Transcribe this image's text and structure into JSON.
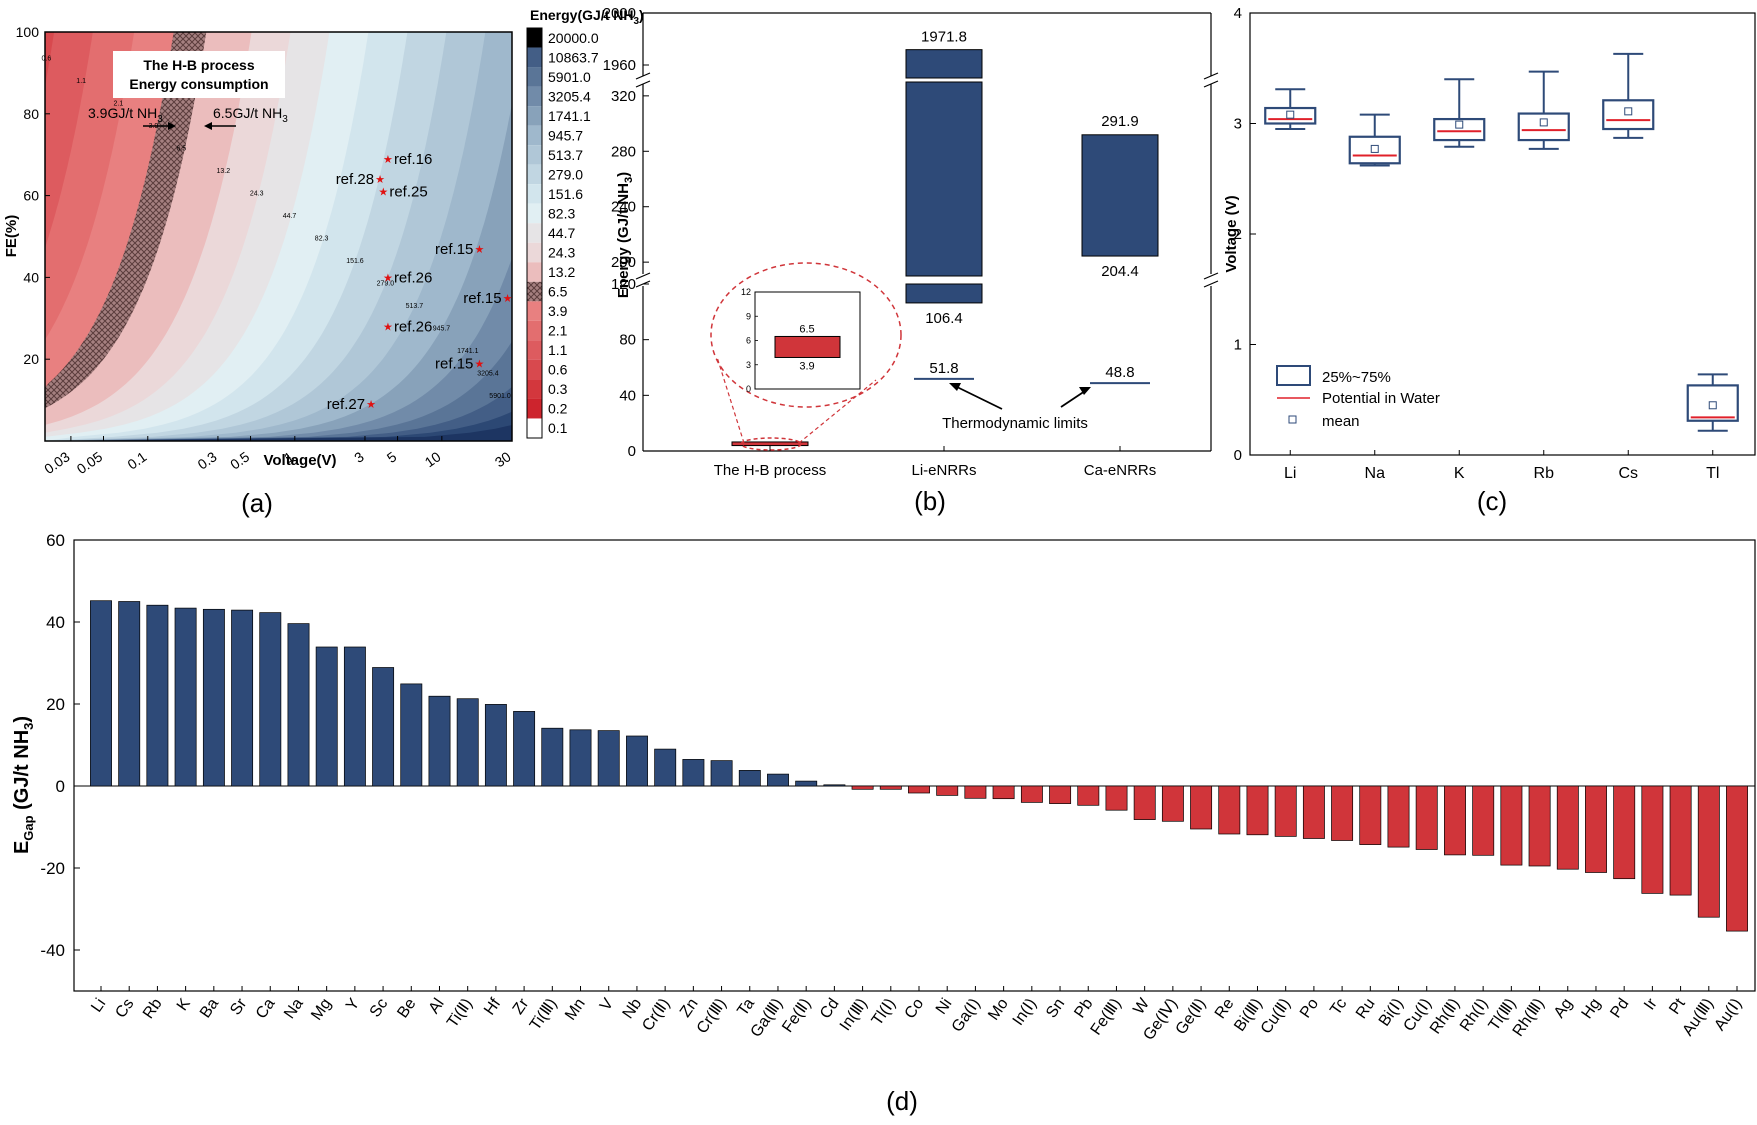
{
  "colors": {
    "blue": "#2e4a78",
    "red": "#d0353a",
    "median": "#e0202a",
    "star": "#e01010",
    "hatch": "#7a5a5a"
  },
  "chart_data": [
    {
      "panel": "a",
      "type": "heatmap",
      "caption": "(a)",
      "xlabel": "Voltage(V)",
      "ylabel": "FE(%)",
      "xscale": "log",
      "xlim": [
        0.02,
        30
      ],
      "ylim": [
        0,
        100
      ],
      "xticks": [
        "0.03",
        "0.05",
        "0.1",
        "0.3",
        "0.5",
        "1",
        "3",
        "5",
        "10",
        "30"
      ],
      "yticks": [
        "20",
        "40",
        "60",
        "80",
        "100"
      ],
      "title_box": [
        "The H-B process",
        "Energy consumption"
      ],
      "colorbar": {
        "title": "Energy(GJ/t NH3)",
        "levels": [
          "20000.0",
          "10863.7",
          "5901.0",
          "3205.4",
          "1741.1",
          "945.7",
          "513.7",
          "279.0",
          "151.6",
          "82.3",
          "44.7",
          "24.3",
          "13.2",
          "6.5",
          "3.9",
          "2.1",
          "1.1",
          "0.6",
          "0.3",
          "0.2",
          "0.1"
        ]
      },
      "contour_labels": [
        "0.6",
        "1.1",
        "2.1",
        "3.9",
        "6.5",
        "13.2",
        "24.3",
        "44.7",
        "82.3",
        "151.6",
        "279.0",
        "513.7",
        "945.7",
        "1741.1",
        "3205.4",
        "5901.0"
      ],
      "band_labels": [
        "3.9GJ/t NH3",
        "6.5GJ/t NH3"
      ],
      "refs": [
        {
          "label": "ref.16",
          "voltage": 4.3,
          "fe": 69
        },
        {
          "label": "ref.28",
          "voltage": 3.8,
          "fe": 64
        },
        {
          "label": "ref.25",
          "voltage": 4.0,
          "fe": 61
        },
        {
          "label": "ref.15",
          "voltage": 18,
          "fe": 47
        },
        {
          "label": "ref.26",
          "voltage": 4.3,
          "fe": 40
        },
        {
          "label": "ref.15",
          "voltage": 28,
          "fe": 35
        },
        {
          "label": "ref.26",
          "voltage": 4.3,
          "fe": 28
        },
        {
          "label": "ref.15",
          "voltage": 18,
          "fe": 19
        },
        {
          "label": "ref.27",
          "voltage": 3.3,
          "fe": 9
        }
      ]
    },
    {
      "panel": "b",
      "type": "bar",
      "caption": "(b)",
      "ylabel": "Energy (GJ/t NH3)",
      "categories": [
        "The H-B process",
        "Li-eNRRs",
        "Ca-eNRRs"
      ],
      "ranges": [
        {
          "category": "The H-B process",
          "low": 3.9,
          "high": 6.5
        },
        {
          "category": "Li-eNRRs",
          "low": 106.4,
          "high": 1971.8
        },
        {
          "category": "Ca-eNRRs",
          "low": 204.4,
          "high": 291.9
        }
      ],
      "range_labels": [
        "1971.8",
        "106.4",
        "291.9",
        "204.4"
      ],
      "thermo_limits": [
        {
          "category": "Li-eNRRs",
          "value": 51.8,
          "label": "51.8"
        },
        {
          "category": "Ca-eNRRs",
          "value": 48.8,
          "label": "48.8"
        }
      ],
      "thermo_annotation": "Thermodynamic limits",
      "yticks_lower": [
        "0",
        "40",
        "80",
        "120"
      ],
      "yticks_middle": [
        "200",
        "240",
        "280",
        "320"
      ],
      "yticks_upper": [
        "1960",
        "2000"
      ],
      "inset": {
        "yticks": [
          "0",
          "3",
          "6",
          "9",
          "12"
        ],
        "low": 3.9,
        "high": 6.5,
        "low_label": "3.9",
        "high_label": "6.5"
      }
    },
    {
      "panel": "c",
      "type": "box",
      "caption": "(c)",
      "ylabel": "Voltage (V)",
      "ylim": [
        0,
        4
      ],
      "yticks": [
        "0",
        "1",
        "2",
        "3",
        "4"
      ],
      "categories": [
        "Li",
        "Na",
        "K",
        "Rb",
        "Cs",
        "Tl"
      ],
      "boxes": [
        {
          "name": "Li",
          "min": 2.95,
          "q1": 3.0,
          "median": 3.04,
          "q3": 3.14,
          "max": 3.31,
          "mean": 3.08
        },
        {
          "name": "Na",
          "min": 2.62,
          "q1": 2.64,
          "median": 2.71,
          "q3": 2.88,
          "max": 3.08,
          "mean": 2.77
        },
        {
          "name": "K",
          "min": 2.79,
          "q1": 2.85,
          "median": 2.93,
          "q3": 3.04,
          "max": 3.4,
          "mean": 2.99
        },
        {
          "name": "Rb",
          "min": 2.77,
          "q1": 2.85,
          "median": 2.94,
          "q3": 3.09,
          "max": 3.47,
          "mean": 3.01
        },
        {
          "name": "Cs",
          "min": 2.87,
          "q1": 2.95,
          "median": 3.03,
          "q3": 3.21,
          "max": 3.63,
          "mean": 3.11
        },
        {
          "name": "Tl",
          "min": 0.22,
          "q1": 0.31,
          "median": 0.34,
          "q3": 0.63,
          "max": 0.73,
          "mean": 0.45
        }
      ],
      "legend": [
        "25%~75%",
        "Potential in Water",
        "mean"
      ]
    },
    {
      "panel": "d",
      "type": "bar",
      "caption": "(d)",
      "ylabel": "EGap (GJ/t NH3)",
      "ylim": [
        -50,
        60
      ],
      "yticks": [
        "-40",
        "-20",
        "0",
        "20",
        "40",
        "60"
      ],
      "categories": [
        "Li",
        "Cs",
        "Rb",
        "K",
        "Ba",
        "Sr",
        "Ca",
        "Na",
        "Mg",
        "Y",
        "Sc",
        "Be",
        "Al",
        "Ti(Ⅱ)",
        "Hf",
        "Zr",
        "Ti(Ⅲ)",
        "Mn",
        "V",
        "Nb",
        "Cr(Ⅱ)",
        "Zn",
        "Cr(Ⅲ)",
        "Ta",
        "Ga(Ⅲ)",
        "Fe(Ⅱ)",
        "Cd",
        "In(Ⅲ)",
        "Tl(Ⅰ)",
        "Co",
        "Ni",
        "Ga(Ⅰ)",
        "Mo",
        "In(Ⅰ)",
        "Sn",
        "Pb",
        "Fe(Ⅲ)",
        "W",
        "Ge(Ⅳ)",
        "Ge(Ⅱ)",
        "Re",
        "Bi(Ⅲ)",
        "Cu(Ⅱ)",
        "Po",
        "Tc",
        "Ru",
        "Bi(Ⅰ)",
        "Cu(Ⅰ)",
        "Rh(Ⅱ)",
        "Rh(Ⅰ)",
        "Tl(Ⅲ)",
        "Rh(Ⅲ)",
        "Ag",
        "Hg",
        "Pd",
        "Ir",
        "Pt",
        "Au(Ⅲ)",
        "Au(Ⅰ)"
      ],
      "values": [
        45.2,
        45.0,
        44.1,
        43.4,
        43.1,
        42.9,
        42.3,
        39.6,
        33.9,
        33.9,
        28.9,
        24.9,
        21.9,
        21.3,
        19.9,
        18.2,
        14.1,
        13.7,
        13.5,
        12.2,
        9.0,
        6.5,
        6.2,
        3.8,
        2.9,
        1.2,
        0.3,
        -0.8,
        -0.8,
        -1.7,
        -2.3,
        -3.0,
        -3.1,
        -4.0,
        -4.3,
        -4.7,
        -5.9,
        -8.2,
        -8.6,
        -10.5,
        -11.7,
        -11.9,
        -12.3,
        -12.8,
        -13.3,
        -14.3,
        -14.9,
        -15.5,
        -16.8,
        -16.9,
        -19.3,
        -19.5,
        -20.3,
        -21.1,
        -22.6,
        -26.2,
        -26.6,
        -32.0,
        -35.4
      ]
    }
  ]
}
